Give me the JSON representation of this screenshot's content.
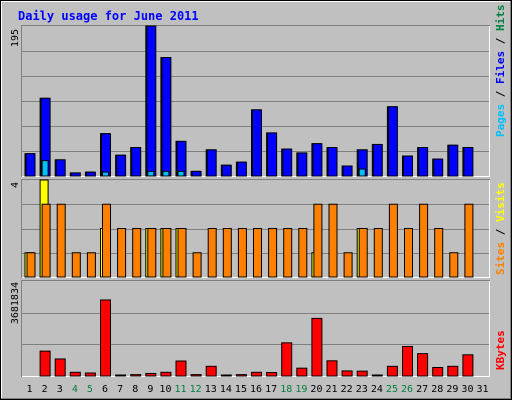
{
  "title": "Daily usage for June 2011",
  "right_labels": {
    "top": [
      {
        "text": "Hits",
        "color": "#008040"
      },
      {
        "text": " / ",
        "color": "#000000"
      },
      {
        "text": "Files",
        "color": "#0000ff"
      },
      {
        "text": " / ",
        "color": "#000000"
      },
      {
        "text": "Pages",
        "color": "#00c0ff"
      }
    ],
    "middle": [
      {
        "text": "Visits",
        "color": "#ffff00"
      },
      {
        "text": " / ",
        "color": "#000000"
      },
      {
        "text": "Sites",
        "color": "#ff8000"
      }
    ],
    "bottom": [
      {
        "text": "KBytes",
        "color": "#ff0000"
      }
    ]
  },
  "colors": {
    "background": "#c0c0c0",
    "title": "#0000ff",
    "hits": "#008040",
    "files": "#0000ff",
    "pages": "#00c0ff",
    "visits": "#ffff00",
    "sites": "#ff8000",
    "kbytes": "#ff0000",
    "weekend_label": "#008040",
    "weekday_label": "#000000",
    "grid": "#808080"
  },
  "chart_data": [
    {
      "type": "bar",
      "panel": "hits-files-pages",
      "ymax_label": "195",
      "ylim": [
        0,
        195
      ],
      "categories": [
        "1",
        "2",
        "3",
        "4",
        "5",
        "6",
        "7",
        "8",
        "9",
        "10",
        "11",
        "12",
        "13",
        "14",
        "15",
        "16",
        "17",
        "18",
        "19",
        "20",
        "21",
        "22",
        "23",
        "24",
        "25",
        "26",
        "27",
        "28",
        "29",
        "30",
        "31"
      ],
      "series": [
        {
          "name": "Hits",
          "values": [
            29,
            101,
            21,
            4,
            5,
            55,
            27,
            37,
            195,
            154,
            45,
            6,
            34,
            14,
            18,
            86,
            56,
            35,
            30,
            42,
            37,
            13,
            34,
            41,
            90,
            26,
            37,
            22,
            40,
            37,
            0
          ]
        },
        {
          "name": "Files",
          "values": [
            29,
            101,
            21,
            4,
            5,
            55,
            27,
            37,
            195,
            154,
            45,
            6,
            34,
            14,
            18,
            86,
            56,
            35,
            30,
            42,
            37,
            13,
            34,
            41,
            90,
            26,
            37,
            22,
            40,
            37,
            0
          ]
        },
        {
          "name": "Pages",
          "values": [
            0,
            20,
            0,
            0,
            0,
            5,
            0,
            0,
            6,
            6,
            6,
            0,
            0,
            0,
            0,
            0,
            0,
            0,
            0,
            0,
            0,
            0,
            9,
            0,
            0,
            0,
            0,
            0,
            0,
            0,
            0
          ]
        }
      ]
    },
    {
      "type": "bar",
      "panel": "visits-sites",
      "ymax_label": "4",
      "ylim": [
        0,
        4
      ],
      "categories": [
        "1",
        "2",
        "3",
        "4",
        "5",
        "6",
        "7",
        "8",
        "9",
        "10",
        "11",
        "12",
        "13",
        "14",
        "15",
        "16",
        "17",
        "18",
        "19",
        "20",
        "21",
        "22",
        "23",
        "24",
        "25",
        "26",
        "27",
        "28",
        "29",
        "30",
        "31"
      ],
      "series": [
        {
          "name": "Visits",
          "values": [
            1,
            4,
            0,
            0,
            0,
            2,
            0,
            0,
            2,
            2,
            2,
            0,
            0,
            0,
            0,
            0,
            0,
            0,
            0,
            1,
            0,
            0,
            2,
            0,
            0,
            0,
            0,
            0,
            0,
            0,
            0
          ]
        },
        {
          "name": "Sites",
          "values": [
            1,
            3,
            3,
            1,
            1,
            3,
            2,
            2,
            2,
            2,
            2,
            1,
            2,
            2,
            2,
            2,
            2,
            2,
            2,
            3,
            3,
            1,
            2,
            2,
            3,
            2,
            3,
            2,
            1,
            3,
            0
          ]
        }
      ]
    },
    {
      "type": "bar",
      "panel": "kbytes",
      "ymax_label": "3681834",
      "ylim": [
        0,
        3681834
      ],
      "categories": [
        "1",
        "2",
        "3",
        "4",
        "5",
        "6",
        "7",
        "8",
        "9",
        "10",
        "11",
        "12",
        "13",
        "14",
        "15",
        "16",
        "17",
        "18",
        "19",
        "20",
        "21",
        "22",
        "23",
        "24",
        "25",
        "26",
        "27",
        "28",
        "29",
        "30",
        "31"
      ],
      "series": [
        {
          "name": "KBytes",
          "values": [
            0,
            1080000,
            740000,
            160000,
            130000,
            3300000,
            40000,
            60000,
            110000,
            160000,
            650000,
            60000,
            420000,
            30000,
            60000,
            160000,
            150000,
            1440000,
            340000,
            2500000,
            660000,
            220000,
            210000,
            25000,
            420000,
            1280000,
            970000,
            370000,
            420000,
            920000,
            0
          ]
        }
      ]
    }
  ]
}
